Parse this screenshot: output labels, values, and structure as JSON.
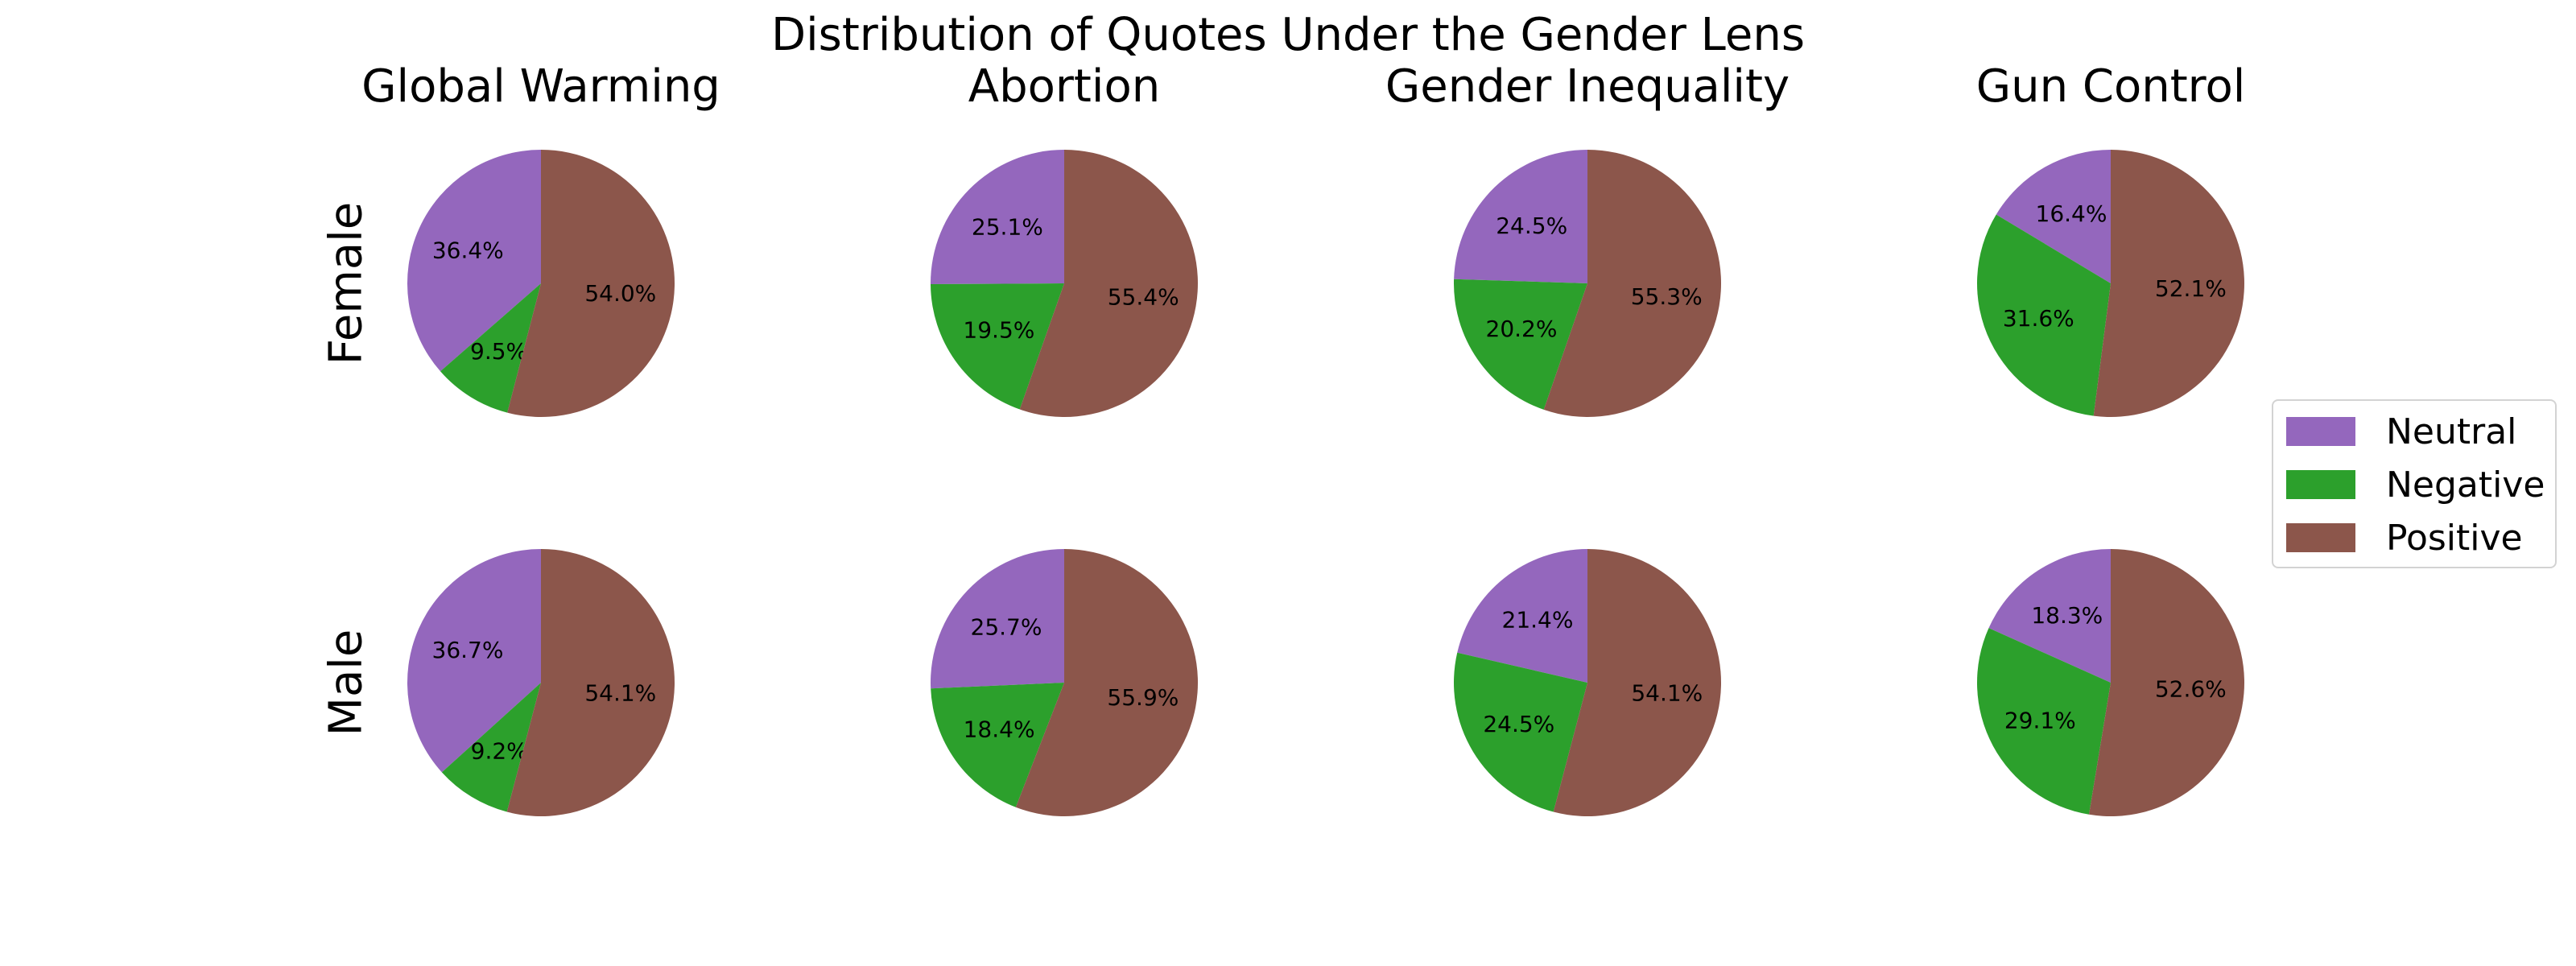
{
  "chart_data": {
    "type": "pie",
    "title": "Distribution of Quotes Under the Gender Lens",
    "columns": [
      "Global Warming",
      "Abortion",
      "Gender Inequality",
      "Gun Control"
    ],
    "rows": [
      "Female",
      "Male"
    ],
    "categories": [
      "Neutral",
      "Negative",
      "Positive"
    ],
    "colors": {
      "Neutral": "#9467bd",
      "Negative": "#2ca02c",
      "Positive": "#8c564b"
    },
    "legend_position": "right",
    "values": {
      "Female": [
        [
          36.4,
          9.5,
          54.0
        ],
        [
          25.1,
          19.5,
          55.4
        ],
        [
          24.5,
          20.2,
          55.3
        ],
        [
          16.4,
          31.6,
          52.1
        ]
      ],
      "Male": [
        [
          36.7,
          9.2,
          54.1
        ],
        [
          25.7,
          18.4,
          55.9
        ],
        [
          21.4,
          24.5,
          54.1
        ],
        [
          18.3,
          29.1,
          52.6
        ]
      ]
    }
  },
  "legend": [
    {
      "label": "Neutral",
      "color": "#9467bd"
    },
    {
      "label": "Negative",
      "color": "#2ca02c"
    },
    {
      "label": "Positive",
      "color": "#8c564b"
    }
  ]
}
